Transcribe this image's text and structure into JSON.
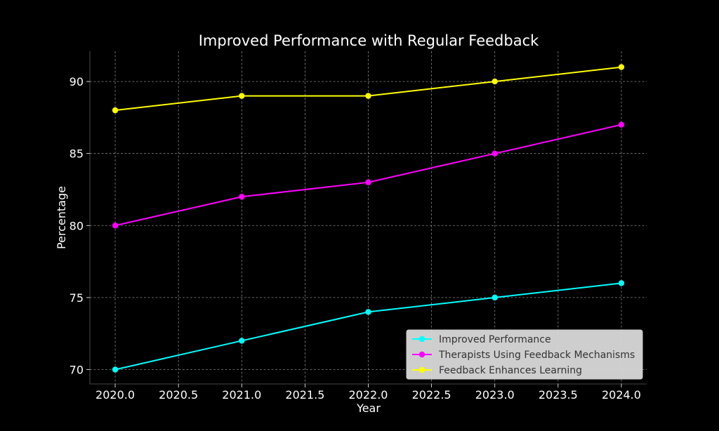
{
  "chart_data": {
    "type": "line",
    "title": "Improved Performance with Regular Feedback",
    "xlabel": "Year",
    "ylabel": "Percentage",
    "xlim": [
      2019.8,
      2024.2
    ],
    "ylim": [
      69.0,
      92.1
    ],
    "xticks": [
      "2020.0",
      "2020.5",
      "2021.0",
      "2021.5",
      "2022.0",
      "2022.5",
      "2023.0",
      "2023.5",
      "2024.0"
    ],
    "yticks": [
      "70",
      "75",
      "80",
      "85",
      "90"
    ],
    "grid": true,
    "legend_position": "lower-right",
    "x": [
      2020,
      2021,
      2022,
      2023,
      2024
    ],
    "series": [
      {
        "name": "Improved Performance",
        "color": "#00ffff",
        "values": [
          70,
          72,
          74,
          75,
          76
        ]
      },
      {
        "name": "Therapists Using Feedback Mechanisms",
        "color": "#ff00ff",
        "values": [
          80,
          82,
          83,
          85,
          87
        ]
      },
      {
        "name": "Feedback Enhances Learning",
        "color": "#ffff00",
        "values": [
          88,
          89,
          89,
          90,
          91
        ]
      }
    ],
    "background": "#000000",
    "legend_background": "#d9d9d9"
  }
}
